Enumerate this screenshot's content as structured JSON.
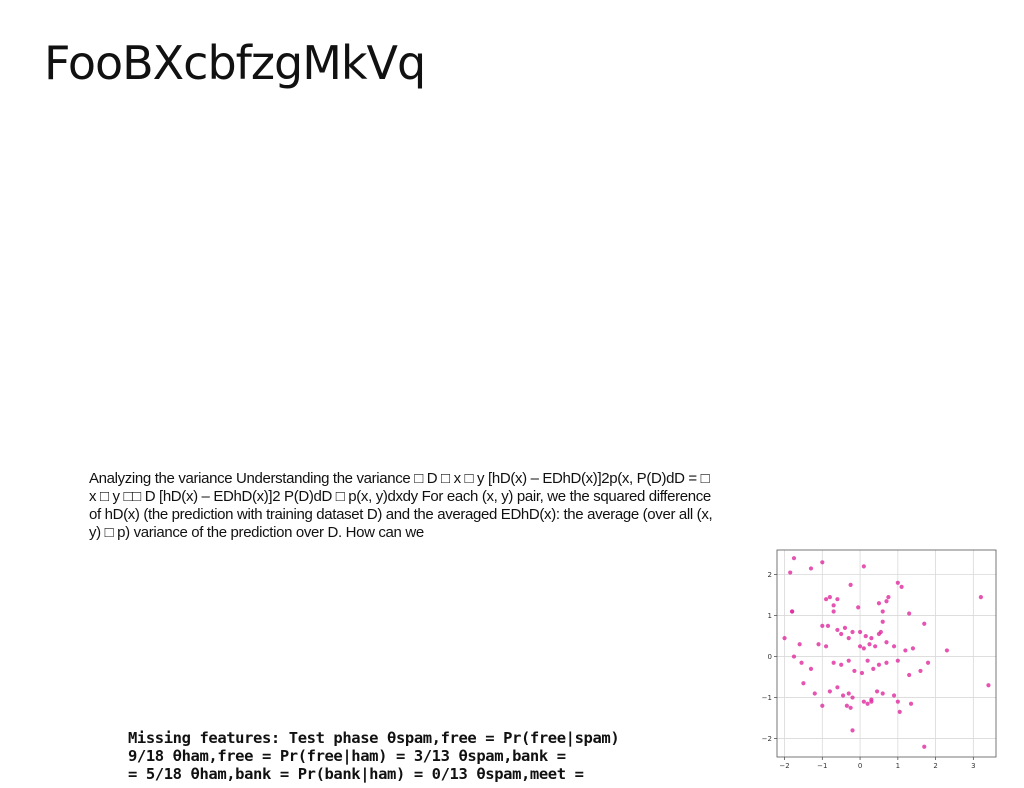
{
  "slide": {
    "title": "FooBXcbfzgMkVq",
    "paragraph": "Analyzing the variance Understanding the variance □ D □ x □ y [hD(x) – EDhD(x)]2p(x, P(D)dD = □ x □ y □□ D [hD(x) – EDhD(x)]2 P(D)dD □ p(x, y)dxdy For each (x, y) pair, we the squared difference of hD(x) (the prediction with training dataset D) and the averaged EDhD(x): the average (over all (x, y) □ p) variance of the prediction over D. How can we",
    "bold_lines": [
      "Missing features: Test phase θspam,free = Pr(free|spam)",
      "9/18 θham,free = Pr(free|ham) = 3/13 θspam,bank =",
      "= 5/18 θham,bank = Pr(bank|ham) = 0/13 θspam,meet ="
    ]
  },
  "colors": {
    "point": "#e0299d",
    "grid": "#d9d9d9",
    "axis": "#555555"
  },
  "chart_data": {
    "type": "scatter",
    "title": "",
    "xlabel": "",
    "ylabel": "",
    "xlim": [
      -2.2,
      3.6
    ],
    "ylim": [
      -2.45,
      2.6
    ],
    "grid": true,
    "x_ticks": [
      -2,
      -1,
      0,
      1,
      2,
      3
    ],
    "y_ticks": [
      -2,
      -1,
      0,
      1,
      2
    ],
    "tick_labels_x": [
      "−2",
      "−1",
      "0",
      "1",
      "2",
      "3"
    ],
    "tick_labels_y": [
      "−2",
      "−1",
      "0",
      "1",
      "2"
    ],
    "series": [
      {
        "x": [
          -1.3,
          -1.0,
          -1.75,
          -0.9,
          0.1,
          -1.85,
          -1.8,
          -0.25,
          1.0,
          1.1,
          -0.8,
          -0.6,
          -0.7,
          -0.05,
          0.7,
          0.75,
          0.5,
          0.6,
          1.3,
          3.2,
          -0.7,
          -1.0,
          -0.85,
          -0.6,
          -0.4,
          -0.2,
          0.0,
          0.15,
          0.3,
          0.5,
          0.6,
          1.7,
          -2.0,
          -1.8,
          -1.6,
          -1.1,
          -0.9,
          -0.5,
          -0.3,
          0.0,
          0.1,
          0.25,
          0.4,
          0.55,
          0.7,
          0.9,
          1.2,
          1.4,
          2.3,
          -1.75,
          -1.55,
          -1.3,
          -0.7,
          -0.5,
          -0.3,
          -0.15,
          0.05,
          0.2,
          0.35,
          0.5,
          0.7,
          1.0,
          1.3,
          1.6,
          1.8,
          3.4,
          -1.5,
          -1.2,
          -0.8,
          -0.6,
          -0.45,
          -0.3,
          -0.2,
          0.2,
          0.3,
          0.45,
          0.6,
          0.9,
          1.0,
          1.05,
          1.35,
          -1.0,
          -0.35,
          -0.25,
          0.1,
          0.3,
          -0.2,
          1.7
        ],
        "y": [
          2.15,
          2.3,
          2.4,
          1.4,
          2.2,
          2.05,
          1.1,
          1.75,
          1.8,
          1.7,
          1.45,
          1.4,
          1.25,
          1.2,
          1.35,
          1.45,
          1.3,
          1.1,
          1.05,
          1.45,
          1.1,
          0.75,
          0.75,
          0.65,
          0.7,
          0.6,
          0.6,
          0.5,
          0.45,
          0.55,
          0.85,
          0.8,
          0.45,
          1.1,
          0.3,
          0.3,
          0.25,
          0.55,
          0.45,
          0.25,
          0.2,
          0.3,
          0.25,
          0.6,
          0.35,
          0.25,
          0.15,
          0.2,
          0.15,
          0.0,
          -0.15,
          -0.3,
          -0.15,
          -0.2,
          -0.1,
          -0.35,
          -0.4,
          -0.1,
          -0.3,
          -0.2,
          -0.15,
          -0.1,
          -0.45,
          -0.35,
          -0.15,
          -0.7,
          -0.65,
          -0.9,
          -0.85,
          -0.75,
          -0.95,
          -0.9,
          -1.0,
          -1.15,
          -1.1,
          -0.85,
          -0.9,
          -0.95,
          -1.1,
          -1.35,
          -1.15,
          -1.2,
          -1.2,
          -1.25,
          -1.1,
          -1.05,
          -1.8,
          -2.2
        ],
        "color": "#e0299d"
      }
    ]
  }
}
